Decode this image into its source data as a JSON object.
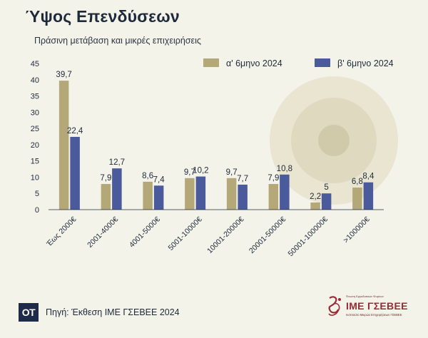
{
  "header": {
    "title": "Ύψος Επενδύσεων",
    "subtitle": "Πράσινη μετάβαση και μικρές επιχειρήσεις"
  },
  "footer": {
    "brand_initials": "ΟΤ",
    "source": "Πηγή: Έκθεση ΙΜΕ ΓΣΕΒΕΕ 2024",
    "ime_small": "Ένωση Εργοδοτικών Φορέων",
    "ime_name": "ΙΜΕ ΓΣΕΒΕΕ",
    "ime_sub": "Ινστιτούτο Μικρών Επιχειρήσεων ΓΣΕΒΕΕ"
  },
  "chart_data": {
    "type": "bar",
    "categories": [
      "Έως 2000€",
      "2001-4000€",
      "4001-5000€",
      "5001-10000€",
      "10001-20000€",
      "20001-50000€",
      "50001-100000€",
      ">100000€"
    ],
    "series": [
      {
        "name": "α' 6μηνο 2024",
        "values": [
          39.7,
          7.9,
          8.6,
          9.7,
          9.7,
          7.9,
          2.2,
          6.8
        ],
        "labels": [
          "39,7",
          "7,9",
          "8,6",
          "9,7",
          "9,7",
          "7,9",
          "2,2",
          "6,8"
        ],
        "color": "#b5a878"
      },
      {
        "name": "β' 6μηνο 2024",
        "values": [
          22.4,
          12.7,
          7.4,
          10.2,
          7.7,
          10.8,
          5,
          8.4
        ],
        "labels": [
          "22,4",
          "12,7",
          "7,4",
          "10,2",
          "7,7",
          "10,8",
          "5",
          "8,4"
        ],
        "color": "#4a5a9a"
      }
    ],
    "yticks": [
      0,
      5,
      10,
      15,
      20,
      25,
      30,
      35,
      40,
      45
    ],
    "ylim": [
      0,
      45
    ],
    "grid": false,
    "legend": "top-right"
  }
}
